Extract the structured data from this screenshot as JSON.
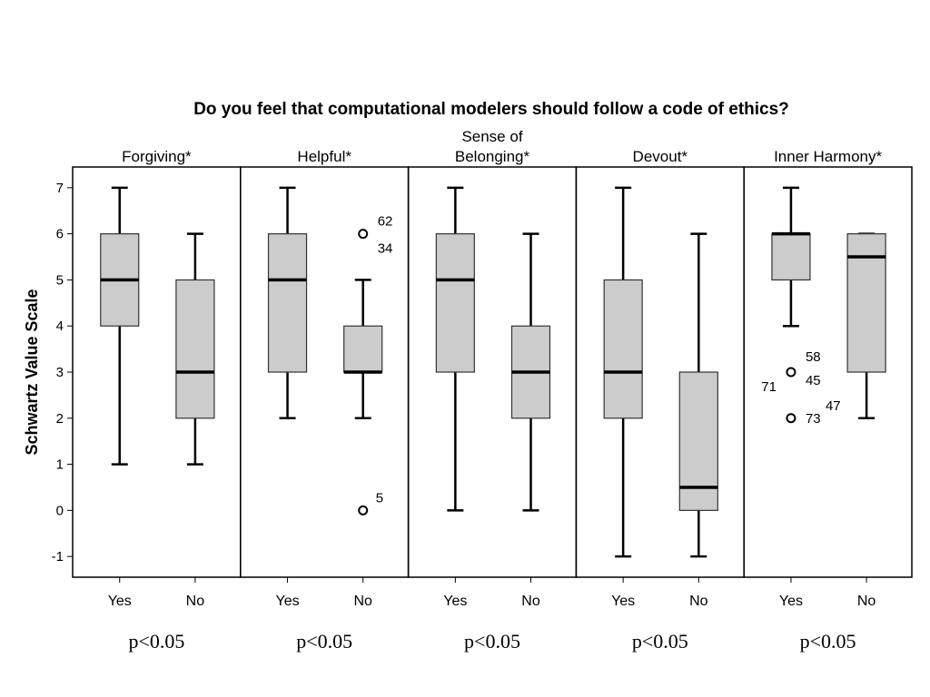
{
  "chart_data": {
    "type": "boxplot",
    "title": "Do you feel that computational modelers should follow a code of ethics?",
    "ylabel": "Schwartz Value Scale",
    "ylim": [
      -1.45,
      7.45
    ],
    "yticks": [
      -1,
      0,
      1,
      2,
      3,
      4,
      5,
      6,
      7
    ],
    "categories": [
      "Yes",
      "No"
    ],
    "colors": {
      "box_fill": "#cccccc",
      "box_stroke": "#333333",
      "median": "#000000",
      "frame": "#000000"
    },
    "panels": [
      {
        "label_lines": [
          "Forgiving*"
        ],
        "p_value": "p<0.05",
        "boxes": [
          {
            "category": "Yes",
            "min": 1,
            "q1": 4,
            "median": 5,
            "q3": 6,
            "max": 7,
            "outliers": []
          },
          {
            "category": "No",
            "min": 1,
            "q1": 2,
            "median": 3,
            "q3": 5,
            "max": 6,
            "outliers": []
          }
        ]
      },
      {
        "label_lines": [
          "Helpful*"
        ],
        "p_value": "p<0.05",
        "boxes": [
          {
            "category": "Yes",
            "min": 2,
            "q1": 3,
            "median": 5,
            "q3": 6,
            "max": 7,
            "outliers": []
          },
          {
            "category": "No",
            "min": 2,
            "q1": 3,
            "median": 3,
            "q3": 4,
            "max": 5,
            "outliers": [
              {
                "value": 6,
                "labels": [
                  "62",
                  "34"
                ]
              },
              {
                "value": 0,
                "labels": [
                  "5"
                ]
              }
            ]
          }
        ]
      },
      {
        "label_lines": [
          "Sense of",
          "Belonging*"
        ],
        "p_value": "p<0.05",
        "boxes": [
          {
            "category": "Yes",
            "min": 0,
            "q1": 3,
            "median": 5,
            "q3": 6,
            "max": 7,
            "outliers": []
          },
          {
            "category": "No",
            "min": 0,
            "q1": 2,
            "median": 3,
            "q3": 4,
            "max": 6,
            "outliers": []
          }
        ]
      },
      {
        "label_lines": [
          "Devout*"
        ],
        "p_value": "p<0.05",
        "boxes": [
          {
            "category": "Yes",
            "min": -1,
            "q1": 2,
            "median": 3,
            "q3": 5,
            "max": 7,
            "outliers": []
          },
          {
            "category": "No",
            "min": -1,
            "q1": 0,
            "median": 0.5,
            "q3": 3,
            "max": 6,
            "outliers": []
          }
        ]
      },
      {
        "label_lines": [
          "Inner Harmony*"
        ],
        "p_value": "p<0.05",
        "boxes": [
          {
            "category": "Yes",
            "min": 4,
            "q1": 5,
            "median": 6,
            "q3": 6,
            "max": 7,
            "outliers": [
              {
                "value": 3,
                "labels": [
                  "58",
                  "71",
                  "45"
                ]
              },
              {
                "value": 2,
                "labels": [
                  "73",
                  "47"
                ]
              }
            ]
          },
          {
            "category": "No",
            "min": 2,
            "q1": 3,
            "median": 5.5,
            "q3": 6,
            "max": 6,
            "outliers": []
          }
        ]
      }
    ]
  }
}
